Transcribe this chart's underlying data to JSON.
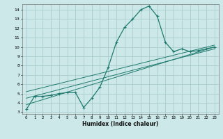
{
  "xlabel": "Humidex (Indice chaleur)",
  "bg_color": "#cce8e8",
  "grid_color": "#aacccc",
  "line_color": "#1e7a6e",
  "xlim": [
    -0.5,
    23.5
  ],
  "ylim": [
    2.8,
    14.6
  ],
  "yticks": [
    3,
    4,
    5,
    6,
    7,
    8,
    9,
    10,
    11,
    12,
    13,
    14
  ],
  "xticks": [
    0,
    1,
    2,
    3,
    4,
    5,
    6,
    7,
    8,
    9,
    10,
    11,
    12,
    13,
    14,
    15,
    16,
    17,
    18,
    19,
    20,
    21,
    22,
    23
  ],
  "main_line_x": [
    0,
    1,
    2,
    3,
    4,
    5,
    6,
    7,
    8,
    9,
    10,
    11,
    12,
    13,
    14,
    15,
    16,
    17,
    18,
    19,
    20,
    21,
    22,
    23
  ],
  "main_line_y": [
    3.3,
    4.7,
    4.7,
    4.8,
    5.0,
    5.1,
    5.1,
    3.5,
    4.5,
    5.7,
    7.8,
    10.5,
    12.1,
    13.0,
    14.0,
    14.4,
    13.3,
    10.5,
    9.5,
    9.8,
    9.5,
    9.6,
    9.8,
    10.0
  ],
  "line2_x": [
    0,
    23
  ],
  "line2_y": [
    3.8,
    10.0
  ],
  "line3_x": [
    0,
    23
  ],
  "line3_y": [
    4.5,
    9.8
  ],
  "line4_x": [
    0,
    23
  ],
  "line4_y": [
    5.2,
    10.2
  ]
}
